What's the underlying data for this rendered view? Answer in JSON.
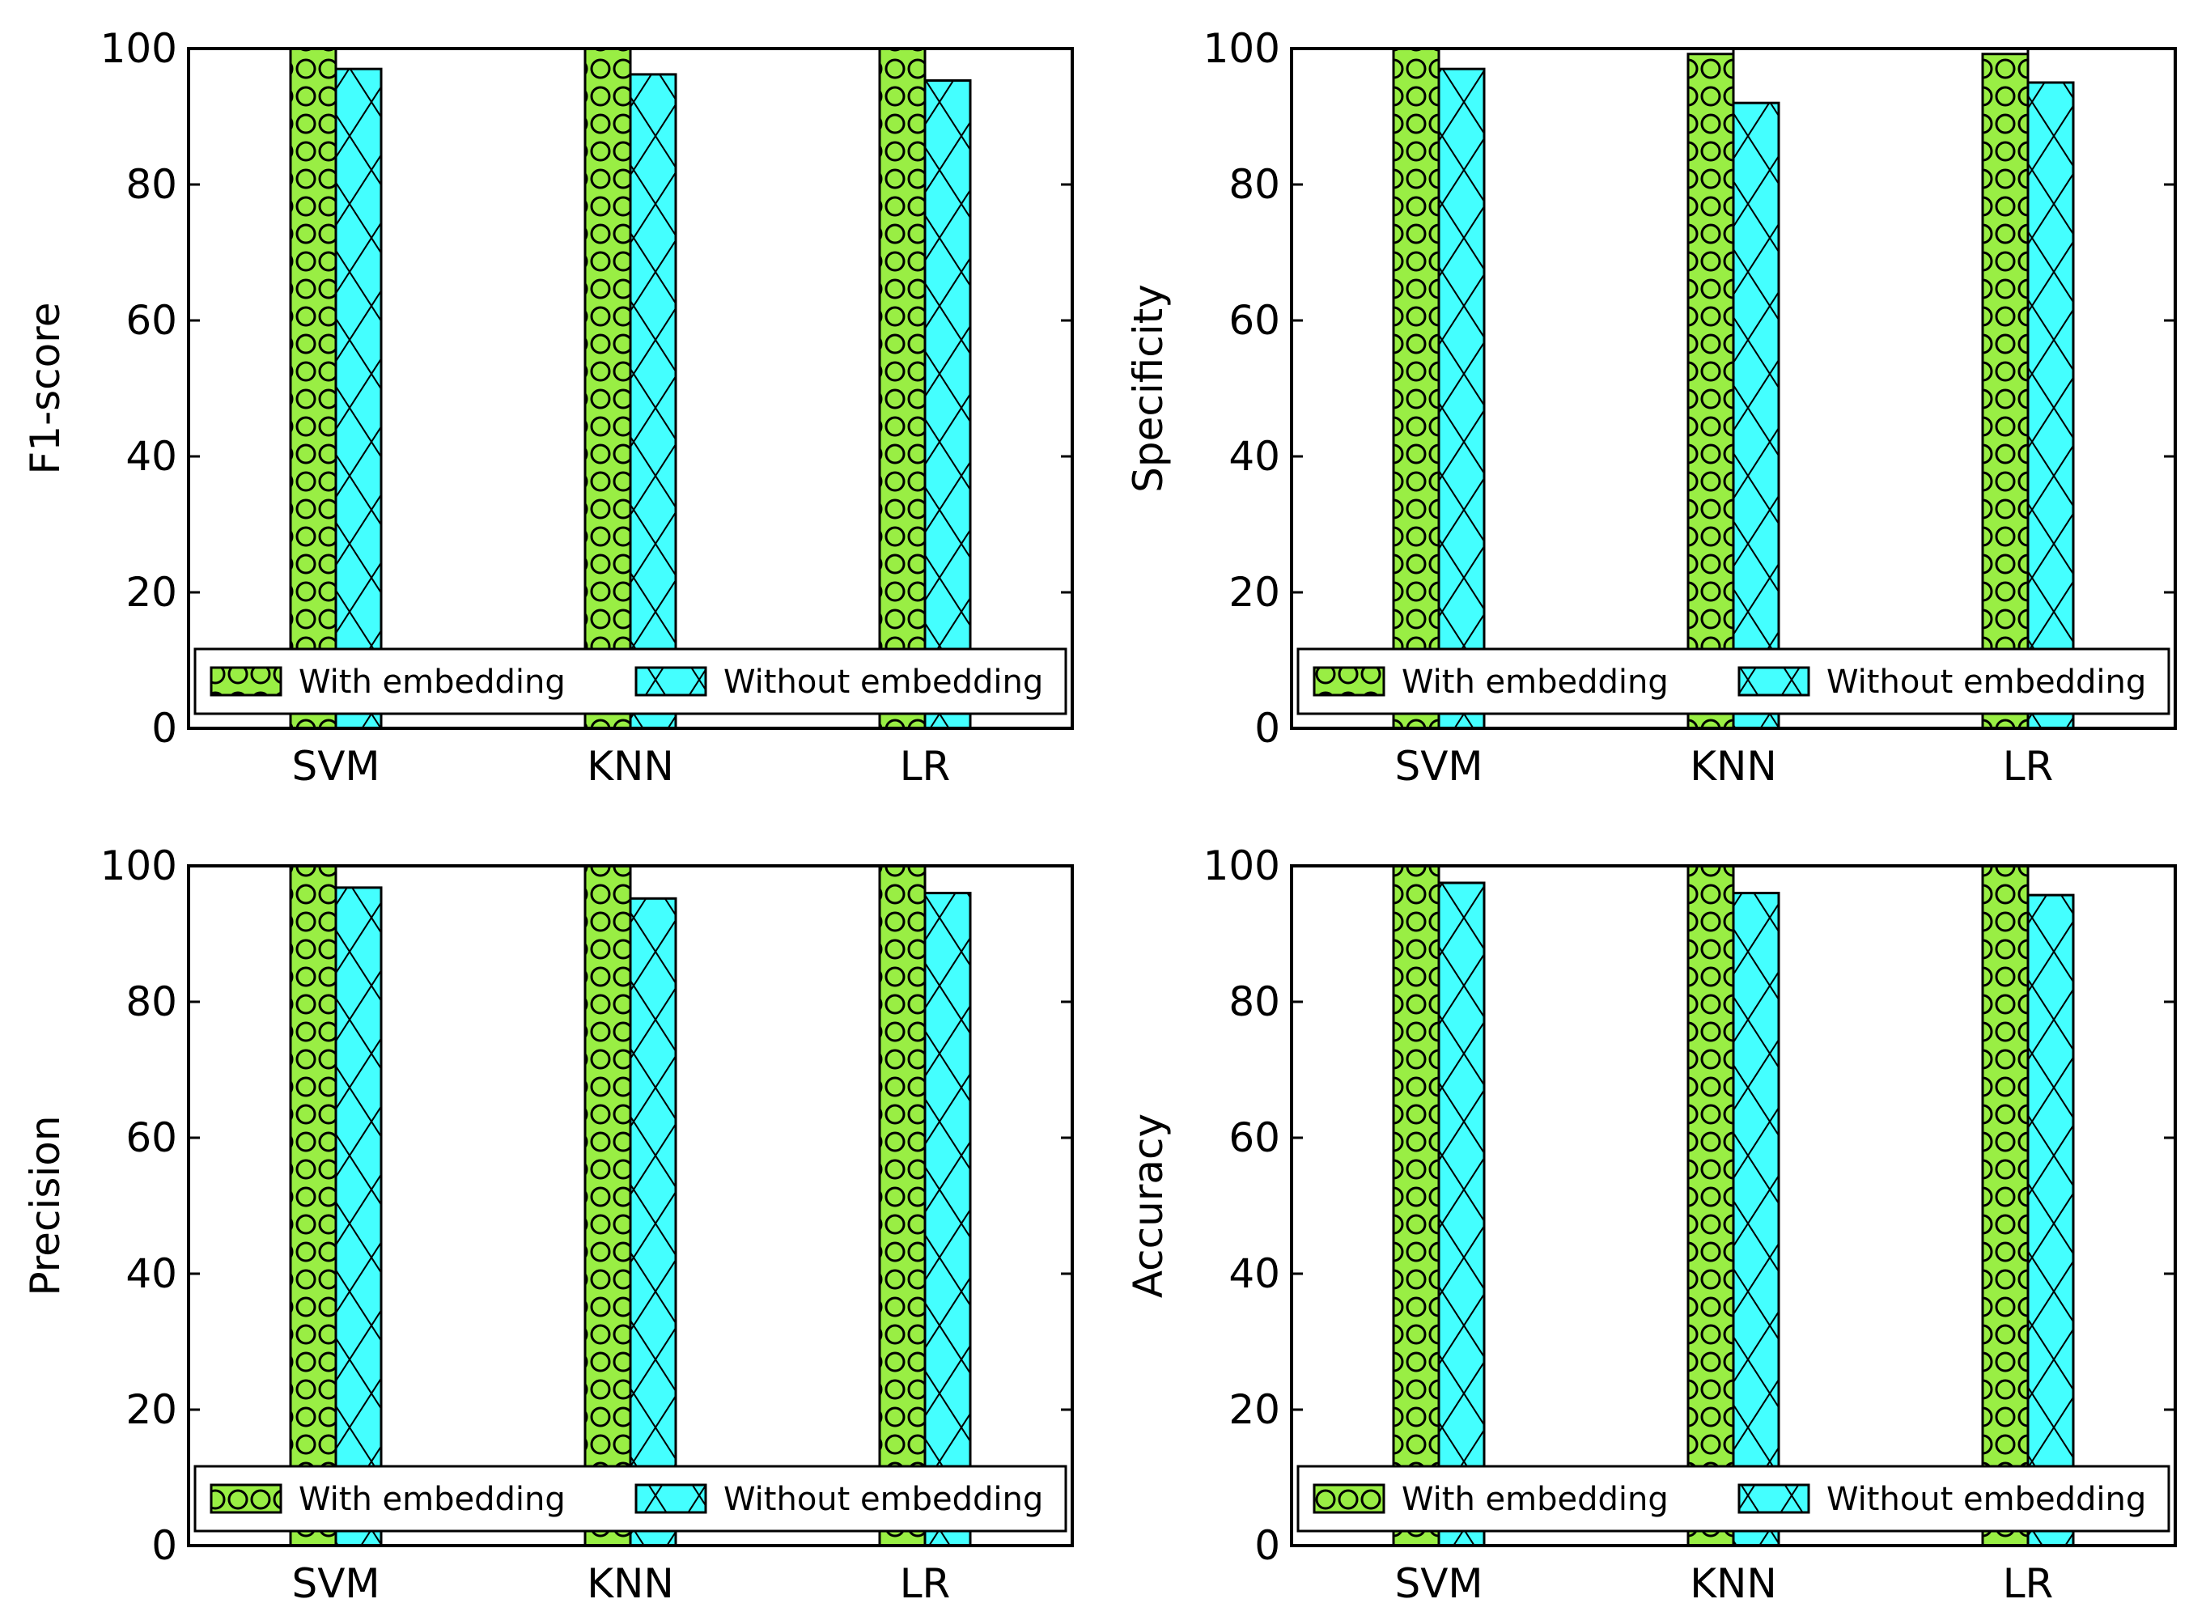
{
  "chart_data": [
    {
      "type": "bar",
      "ylabel": "F1-score",
      "categories": [
        "SVM",
        "KNN",
        "LR"
      ],
      "ylim": [
        0,
        100
      ],
      "yticks": [
        0,
        20,
        40,
        60,
        80,
        100
      ],
      "legend_location": "lower center",
      "series": [
        {
          "name": "With embedding",
          "values": [
            100,
            100,
            100
          ],
          "color": "#99ee44",
          "hatch": "circles"
        },
        {
          "name": "Without embedding",
          "values": [
            97,
            96.2,
            95.3
          ],
          "color": "#44ffff",
          "hatch": "cross"
        }
      ]
    },
    {
      "type": "bar",
      "ylabel": "Specificity",
      "categories": [
        "SVM",
        "KNN",
        "LR"
      ],
      "ylim": [
        0,
        100
      ],
      "yticks": [
        0,
        20,
        40,
        60,
        80,
        100
      ],
      "legend_location": "lower center",
      "series": [
        {
          "name": "With embedding",
          "values": [
            100,
            99.2,
            99.2
          ],
          "color": "#99ee44",
          "hatch": "circles"
        },
        {
          "name": "Without embedding",
          "values": [
            97,
            92,
            95
          ],
          "color": "#44ffff",
          "hatch": "cross"
        }
      ]
    },
    {
      "type": "bar",
      "ylabel": "Precision",
      "categories": [
        "SVM",
        "KNN",
        "LR"
      ],
      "ylim": [
        0,
        100
      ],
      "yticks": [
        0,
        20,
        40,
        60,
        80,
        100
      ],
      "legend_location": "lower center",
      "series": [
        {
          "name": "With embedding",
          "values": [
            100,
            100,
            100
          ],
          "color": "#99ee44",
          "hatch": "circles"
        },
        {
          "name": "Without embedding",
          "values": [
            96.8,
            95.2,
            96
          ],
          "color": "#44ffff",
          "hatch": "cross"
        }
      ]
    },
    {
      "type": "bar",
      "ylabel": "Accuracy",
      "categories": [
        "SVM",
        "KNN",
        "LR"
      ],
      "ylim": [
        0,
        100
      ],
      "yticks": [
        0,
        20,
        40,
        60,
        80,
        100
      ],
      "legend_location": "lower center",
      "series": [
        {
          "name": "With embedding",
          "values": [
            100,
            100,
            100
          ],
          "color": "#99ee44",
          "hatch": "circles"
        },
        {
          "name": "Without embedding",
          "values": [
            97.5,
            96,
            95.7
          ],
          "color": "#44ffff",
          "hatch": "cross"
        }
      ]
    }
  ]
}
